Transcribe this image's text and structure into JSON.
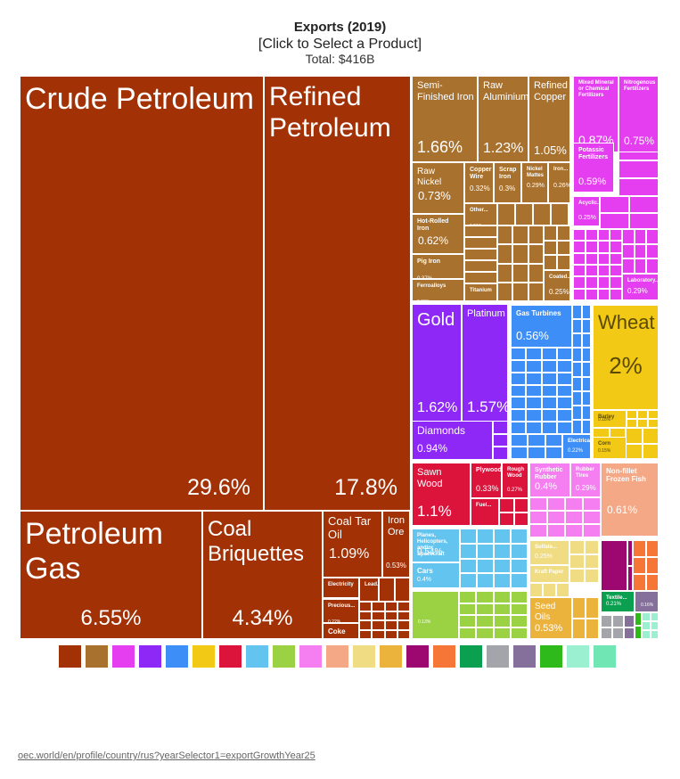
{
  "header": {
    "title": "Exports (2019)",
    "subtitle": "[Click to Select a Product]",
    "total": "Total: $416B"
  },
  "source_link": "oec.world/en/profile/country/rus?yearSelector1=exportGrowthYear25",
  "legend": {
    "colors": [
      "#a23106",
      "#a8712d",
      "#e53ef0",
      "#8e28f7",
      "#3d8ff7",
      "#f2c914",
      "#dc143c",
      "#62c4ef",
      "#9bd244",
      "#f57ef0",
      "#f4a886",
      "#f0dc82",
      "#ecb33c",
      "#9c0770",
      "#f67637",
      "#0aa04f",
      "#a4a5ab",
      "#85709c",
      "#2fba1c",
      "#9bf0d2",
      "#70e6b4"
    ]
  },
  "chart_data": {
    "type": "treemap",
    "title": "Exports (2019)",
    "total": "Total: $416B",
    "unit": "% of total exports",
    "items": [
      {
        "name": "Crude Petroleum",
        "value": 29.6,
        "pct": "29.6%",
        "color": "#a23106"
      },
      {
        "name": "Refined Petroleum",
        "value": 17.8,
        "pct": "17.8%",
        "color": "#a23106"
      },
      {
        "name": "Petroleum Gas",
        "value": 6.55,
        "pct": "6.55%",
        "color": "#a23106"
      },
      {
        "name": "Coal Briquettes",
        "value": 4.34,
        "pct": "4.34%",
        "color": "#a23106"
      },
      {
        "name": "Coal Tar Oil",
        "value": 1.09,
        "pct": "1.09%",
        "color": "#a23106"
      },
      {
        "name": "Iron Ore",
        "value": 0.53,
        "pct": "0.53%",
        "color": "#a23106"
      },
      {
        "name": "Electricity",
        "value": 0.23,
        "pct": "0.23%",
        "color": "#a23106"
      },
      {
        "name": "Precious...",
        "value": 0.22,
        "pct": "0.22%",
        "color": "#a23106"
      },
      {
        "name": "Coke",
        "value": null,
        "pct": "",
        "color": "#a23106"
      },
      {
        "name": "Lead...",
        "value": null,
        "pct": "",
        "color": "#a23106"
      },
      {
        "name": "Semi-Finished Iron",
        "value": 1.66,
        "pct": "1.66%",
        "color": "#a8712d"
      },
      {
        "name": "Raw Aluminium",
        "value": 1.23,
        "pct": "1.23%",
        "color": "#a8712d"
      },
      {
        "name": "Refined Copper",
        "value": 1.05,
        "pct": "1.05%",
        "color": "#a8712d"
      },
      {
        "name": "Raw Nickel",
        "value": 0.73,
        "pct": "0.73%",
        "color": "#a8712d"
      },
      {
        "name": "Copper Wire",
        "value": 0.32,
        "pct": "0.32%",
        "color": "#a8712d"
      },
      {
        "name": "Scrap Iron",
        "value": 0.3,
        "pct": "0.3%",
        "color": "#a8712d"
      },
      {
        "name": "Nickel Mattes",
        "value": 0.29,
        "pct": "0.29%",
        "color": "#a8712d"
      },
      {
        "name": "Iron...",
        "value": 0.26,
        "pct": "0.26%",
        "color": "#a8712d"
      },
      {
        "name": "Hot-Rolled Iron",
        "value": 0.62,
        "pct": "0.62%",
        "color": "#a8712d"
      },
      {
        "name": "Other...",
        "value": 0.21,
        "pct": "0.21%",
        "color": "#a8712d"
      },
      {
        "name": "Pig Iron",
        "value": 0.37,
        "pct": "0.37%",
        "color": "#a8712d"
      },
      {
        "name": "Ferroalloys",
        "value": 0.33,
        "pct": "0.33%",
        "color": "#a8712d"
      },
      {
        "name": "Titanium",
        "value": null,
        "pct": "",
        "color": "#a8712d"
      },
      {
        "name": "Coated...",
        "value": 0.25,
        "pct": "0.25%",
        "color": "#a8712d"
      },
      {
        "name": "Mixed Mineral or Chemical Fertilizers",
        "value": 0.87,
        "pct": "0.87%",
        "color": "#e53ef0"
      },
      {
        "name": "Nitrogenous Fertilizers",
        "value": 0.75,
        "pct": "0.75%",
        "color": "#e53ef0"
      },
      {
        "name": "Potassic Fertilizers",
        "value": 0.59,
        "pct": "0.59%",
        "color": "#e53ef0"
      },
      {
        "name": "Acyclic...",
        "value": 0.25,
        "pct": "0.25%",
        "color": "#e53ef0"
      },
      {
        "name": "Laboratory...",
        "value": 0.29,
        "pct": "0.29%",
        "color": "#e53ef0"
      },
      {
        "name": "Gold",
        "value": 1.62,
        "pct": "1.62%",
        "color": "#8e28f7"
      },
      {
        "name": "Platinum",
        "value": 1.57,
        "pct": "1.57%",
        "color": "#8e28f7"
      },
      {
        "name": "Diamonds",
        "value": 0.94,
        "pct": "0.94%",
        "color": "#8e28f7"
      },
      {
        "name": "Gas Turbines",
        "value": 0.56,
        "pct": "0.56%",
        "color": "#3d8ff7"
      },
      {
        "name": "Electrical...",
        "value": 0.22,
        "pct": "0.22%",
        "color": "#3d8ff7"
      },
      {
        "name": "Wheat",
        "value": 2,
        "pct": "2%",
        "color": "#f2c914"
      },
      {
        "name": "Barley",
        "value": 0.18,
        "pct": "0.18%",
        "color": "#f2c914"
      },
      {
        "name": "Corn",
        "value": 0.15,
        "pct": "0.15%",
        "color": "#f2c914"
      },
      {
        "name": "Sawn Wood",
        "value": 1.1,
        "pct": "1.1%",
        "color": "#dc143c"
      },
      {
        "name": "Plywood",
        "value": 0.33,
        "pct": "0.33%",
        "color": "#dc143c"
      },
      {
        "name": "Rough Wood",
        "value": 0.27,
        "pct": "0.27%",
        "color": "#dc143c"
      },
      {
        "name": "Fuel...",
        "value": null,
        "pct": "",
        "color": "#dc143c"
      },
      {
        "name": "Planes, Helicopters, and/or Spacecraft",
        "value": 0.54,
        "pct": "0.54%",
        "color": "#62c4ef"
      },
      {
        "name": "Cars",
        "value": 0.4,
        "pct": "0.4%",
        "color": "#62c4ef"
      },
      {
        "name": "",
        "value": 0.13,
        "pct": "0.13%",
        "color": "#9bd244"
      },
      {
        "name": "Synthetic Rubber",
        "value": 0.4,
        "pct": "0.4%",
        "color": "#f57ef0"
      },
      {
        "name": "Rubber Tires",
        "value": 0.29,
        "pct": "0.29%",
        "color": "#f57ef0"
      },
      {
        "name": "Non-fillet Frozen Fish",
        "value": 0.61,
        "pct": "0.61%",
        "color": "#f4a886"
      },
      {
        "name": "Sulfate...",
        "value": 0.25,
        "pct": "0.25%",
        "color": "#f0dc82"
      },
      {
        "name": "Kraft Paper",
        "value": null,
        "pct": "",
        "color": "#f0dc82"
      },
      {
        "name": "Seed Oils",
        "value": 0.53,
        "pct": "0.53%",
        "color": "#ecb33c"
      },
      {
        "name": "Textile...",
        "value": 0.21,
        "pct": "0.21%",
        "color": "#0aa04f"
      },
      {
        "name": "",
        "value": 0.16,
        "pct": "0.16%",
        "color": "#85709c"
      }
    ]
  }
}
